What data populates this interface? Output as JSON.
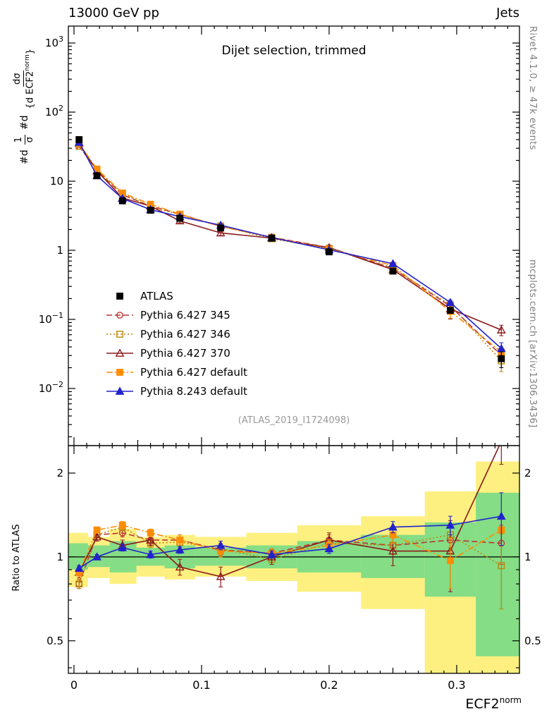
{
  "header": {
    "left": "13000 GeV pp",
    "right": "Jets"
  },
  "title": "Dijet selection, trimmed",
  "watermark": "(ATLAS_2019_I1724098)",
  "side_notes": {
    "top": "Rivet 4.1.0, ≥ 47k events",
    "bottom": "mcplots.cern.ch [arXiv:1306.3436]"
  },
  "ylabel_main": {
    "prefix1": "#d",
    "num1": "1",
    "den1": "σ",
    "prefix2": "#d",
    "num2": "dσ",
    "den2": "{d ECF2",
    "den2_sup": "norm",
    "den2_close": "}"
  },
  "ylabel_ratio": "Ratio to ATLAS",
  "xlabel": {
    "base": "ECF2",
    "sup": "norm"
  },
  "chart_data": {
    "type": "line",
    "title": "Dijet selection, trimmed",
    "xlabel": "ECF2^norm",
    "ylabel": "1/σ dσ/d ECF2^norm",
    "x": [
      0.004,
      0.018,
      0.038,
      0.06,
      0.083,
      0.115,
      0.155,
      0.2,
      0.25,
      0.295,
      0.335
    ],
    "atlas": {
      "label": "ATLAS",
      "color": "#000000",
      "marker": "square",
      "fill": true,
      "line": null,
      "sigma": [
        40,
        12,
        5.2,
        3.8,
        2.9,
        2.1,
        1.5,
        0.95,
        0.5,
        0.135,
        0.027
      ],
      "sigma_err": [
        3,
        0.8,
        0.3,
        0.2,
        0.15,
        0.1,
        0.06,
        0.04,
        0.025,
        0.012,
        0.007
      ]
    },
    "series": [
      {
        "label": "Pythia 6.427 345",
        "color": "#bb3333",
        "line": "dashed",
        "marker": "circle",
        "fill": false,
        "ratio": [
          0.8,
          1.2,
          1.22,
          1.15,
          1.15,
          1.06,
          1.03,
          1.15,
          1.1,
          1.15,
          1.12
        ],
        "ratio_err": [
          0.03,
          0.03,
          0.04,
          0.04,
          0.05,
          0.05,
          0.04,
          0.05,
          0.08,
          0.12,
          0.18
        ]
      },
      {
        "label": "Pythia 6.427 346",
        "color": "#b8860b",
        "line": "dotted",
        "marker": "square",
        "fill": false,
        "ratio": [
          0.8,
          1.2,
          1.28,
          1.12,
          1.13,
          1.07,
          0.98,
          1.12,
          1.1,
          1.2,
          0.93
        ],
        "ratio_err": [
          0.03,
          0.03,
          0.04,
          0.04,
          0.05,
          0.05,
          0.04,
          0.05,
          0.08,
          0.12,
          0.28
        ]
      },
      {
        "label": "Pythia 6.427 370",
        "color": "#8b1a1a",
        "line": "solid",
        "marker": "triangle",
        "fill": false,
        "ratio": [
          0.88,
          1.18,
          1.1,
          1.15,
          0.92,
          0.85,
          1.0,
          1.15,
          1.05,
          1.05,
          2.6
        ],
        "ratio_err": [
          0.04,
          0.04,
          0.05,
          0.05,
          0.06,
          0.07,
          0.06,
          0.07,
          0.12,
          0.3,
          0.45
        ]
      },
      {
        "label": "Pythia 6.427 default",
        "color": "#ff8c00",
        "line": "dashdot",
        "marker": "square",
        "fill": true,
        "ratio": [
          0.88,
          1.25,
          1.3,
          1.22,
          1.15,
          1.05,
          1.03,
          1.1,
          1.2,
          0.97,
          1.25
        ],
        "ratio_err": [
          0.03,
          0.03,
          0.04,
          0.04,
          0.05,
          0.05,
          0.04,
          0.05,
          0.08,
          0.2,
          0.15
        ]
      },
      {
        "label": "Pythia 8.243 default",
        "color": "#2222cc",
        "line": "solid",
        "marker": "triangle",
        "fill": true,
        "ratio": [
          0.91,
          1.0,
          1.08,
          1.02,
          1.06,
          1.1,
          1.02,
          1.07,
          1.28,
          1.3,
          1.4
        ],
        "ratio_err": [
          0.02,
          0.02,
          0.03,
          0.03,
          0.03,
          0.04,
          0.03,
          0.04,
          0.06,
          0.1,
          0.3
        ]
      }
    ],
    "bands": {
      "yellow_color": "#fdf080",
      "green_color": "#85dd85",
      "edges": [
        -0.005,
        0.011,
        0.028,
        0.049,
        0.071,
        0.095,
        0.135,
        0.175,
        0.225,
        0.275,
        0.315,
        0.3492
      ],
      "yellow_lo": [
        0.78,
        0.84,
        0.8,
        0.85,
        0.83,
        0.85,
        0.82,
        0.75,
        0.65,
        0.38,
        0.38
      ],
      "yellow_hi": [
        1.22,
        1.18,
        1.26,
        1.18,
        1.2,
        1.18,
        1.22,
        1.3,
        1.4,
        1.72,
        2.2
      ],
      "green_lo": [
        0.9,
        0.92,
        0.88,
        0.93,
        0.91,
        0.93,
        0.91,
        0.88,
        0.84,
        0.72,
        0.44
      ],
      "green_hi": [
        1.12,
        1.1,
        1.14,
        1.08,
        1.1,
        1.08,
        1.1,
        1.14,
        1.2,
        1.33,
        1.7
      ]
    },
    "axes": {
      "xlim": [
        -0.0044,
        0.3492
      ],
      "ylim_main": [
        0.00149,
        1758
      ],
      "ylim_ratio": [
        0.382,
        2.51
      ],
      "x_log": false,
      "y_main_log": true,
      "y_ratio_log": true,
      "xticks": [
        {
          "v": 0,
          "l": "0"
        },
        {
          "v": 0.1,
          "l": "0.1"
        },
        {
          "v": 0.2,
          "l": "0.2"
        },
        {
          "v": 0.3,
          "l": "0.3"
        }
      ],
      "yticks_main": [
        {
          "v": 1000,
          "b": "10",
          "s": "3"
        },
        {
          "v": 100,
          "b": "10",
          "s": "2"
        },
        {
          "v": 10,
          "b": "10",
          "s": ""
        },
        {
          "v": 1,
          "b": "1",
          "s": ""
        },
        {
          "v": 0.1,
          "b": "10",
          "s": "−1"
        },
        {
          "v": 0.01,
          "b": "10",
          "s": "−2"
        }
      ],
      "yticks_ratio": [
        {
          "v": 0.5,
          "l": "0.5"
        },
        {
          "v": 1,
          "l": "1"
        },
        {
          "v": 2,
          "l": "2"
        }
      ],
      "yticks_ratio_minor": [
        0.4,
        0.6,
        0.7,
        0.8,
        0.9
      ]
    }
  }
}
